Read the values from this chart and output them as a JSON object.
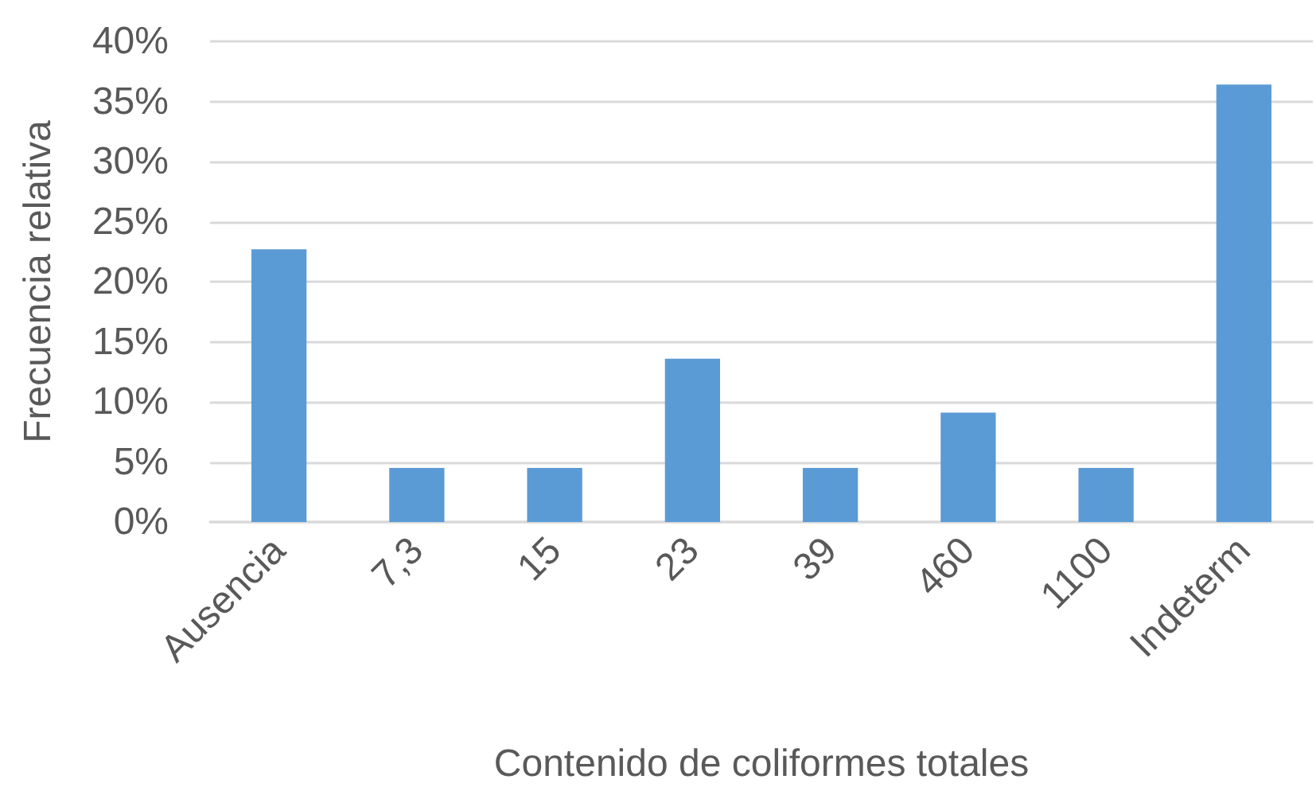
{
  "chart_data": {
    "type": "bar",
    "xlabel": "Contenido de coliformes totales",
    "ylabel": "Frecuencia relativa",
    "categories": [
      "Ausencia",
      "7,3",
      "15",
      "23",
      "39",
      "460",
      "1100",
      "Indeterm"
    ],
    "values": [
      22.7,
      4.5,
      4.5,
      13.6,
      4.5,
      9.1,
      4.5,
      36.4
    ],
    "color": "#5b9bd5",
    "ylim": [
      0,
      40
    ],
    "yticks": [
      {
        "value": 0,
        "label": "0%"
      },
      {
        "value": 5,
        "label": "5%"
      },
      {
        "value": 10,
        "label": "10%"
      },
      {
        "value": 15,
        "label": "15%"
      },
      {
        "value": 20,
        "label": "20%"
      },
      {
        "value": 25,
        "label": "25%"
      },
      {
        "value": 30,
        "label": "30%"
      },
      {
        "value": 35,
        "label": "35%"
      },
      {
        "value": 40,
        "label": "40%"
      }
    ],
    "grid": "y"
  }
}
